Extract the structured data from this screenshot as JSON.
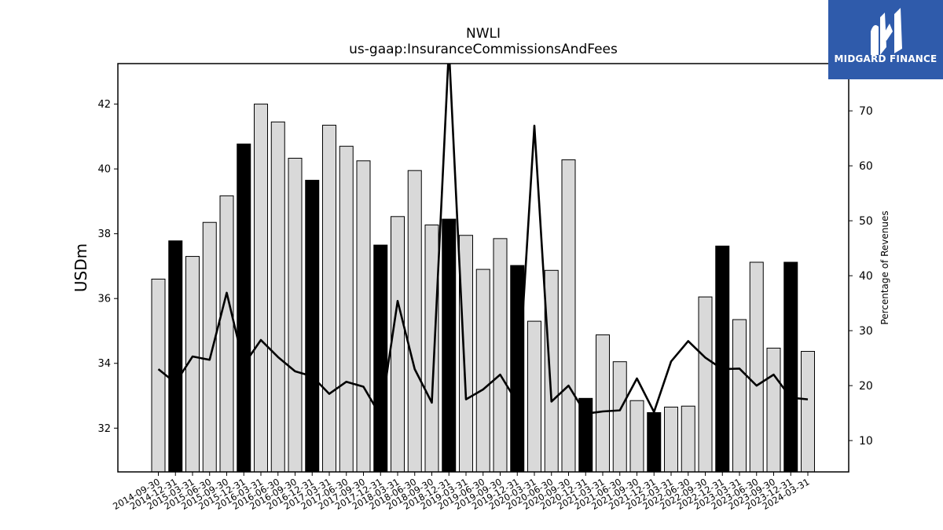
{
  "chart_data": {
    "type": "bar",
    "title": "NWLI",
    "subtitle": "us-gaap:InsuranceCommissionsAndFees",
    "ylabel": "USDm",
    "y2label": "Percentage of Revenues",
    "ylim": [
      30.65,
      43.25
    ],
    "y2lim": [
      4.3,
      78.6
    ],
    "yticks": [
      32,
      34,
      36,
      38,
      40,
      42
    ],
    "y2ticks": [
      10,
      20,
      30,
      40,
      50,
      60,
      70
    ],
    "categories": [
      "2014-09-30",
      "2014-12-31",
      "2015-03-31",
      "2015-06-30",
      "2015-09-30",
      "2015-12-31",
      "2016-03-31",
      "2016-06-30",
      "2016-09-30",
      "2016-12-31",
      "2017-03-31",
      "2017-06-30",
      "2017-09-30",
      "2017-12-31",
      "2018-03-31",
      "2018-06-30",
      "2018-09-30",
      "2018-12-31",
      "2019-03-31",
      "2019-06-30",
      "2019-09-30",
      "2019-12-31",
      "2020-03-31",
      "2020-06-30",
      "2020-09-30",
      "2020-12-31",
      "2021-03-31",
      "2021-06-30",
      "2021-09-30",
      "2021-12-31",
      "2022-03-31",
      "2022-06-30",
      "2022-09-30",
      "2022-12-31",
      "2023-03-31",
      "2023-06-30",
      "2023-09-30",
      "2023-12-31",
      "2024-03-31"
    ],
    "series": [
      {
        "type": "bar",
        "axis": "left",
        "values": [
          36.6,
          37.78,
          37.3,
          38.35,
          39.17,
          40.77,
          42.0,
          41.45,
          40.33,
          39.65,
          41.35,
          40.7,
          40.25,
          37.65,
          38.53,
          39.95,
          38.27,
          38.45,
          37.95,
          36.9,
          37.85,
          37.02,
          35.3,
          36.87,
          40.28,
          32.92,
          34.88,
          34.05,
          32.85,
          32.48,
          32.65,
          32.68,
          36.05,
          37.62,
          35.35,
          37.12,
          34.47,
          37.12,
          34.37
        ],
        "colors_note": "black bars mark year-end quarters",
        "highlight": [
          false,
          true,
          false,
          false,
          false,
          true,
          false,
          false,
          false,
          true,
          false,
          false,
          false,
          true,
          false,
          false,
          false,
          true,
          false,
          false,
          false,
          true,
          false,
          false,
          false,
          true,
          false,
          false,
          false,
          true,
          false,
          false,
          false,
          true,
          false,
          false,
          false,
          true,
          false
        ]
      },
      {
        "type": "line",
        "axis": "right",
        "values": [
          23,
          20.5,
          25.3,
          24.7,
          36.9,
          23.8,
          28.3,
          25.2,
          22.6,
          21.7,
          18.5,
          20.7,
          19.8,
          14.5,
          35.4,
          23,
          16.9,
          81.5,
          17.5,
          19.3,
          22,
          16.9,
          67.3,
          17.1,
          20,
          14.9,
          15.3,
          15.5,
          21.3,
          15.2,
          24.4,
          28.1,
          25.1,
          23,
          23.1,
          20,
          22,
          17.8,
          17.5
        ]
      }
    ],
    "colors": {
      "bar_fill": "#d9d9d9",
      "bar_highlight": "#000000",
      "bar_edge": "#000000",
      "line": "#000000"
    },
    "grid": false,
    "legend": "none"
  },
  "logo": {
    "text": "MIDGARD FINANCE",
    "background": "#2f5bab"
  }
}
